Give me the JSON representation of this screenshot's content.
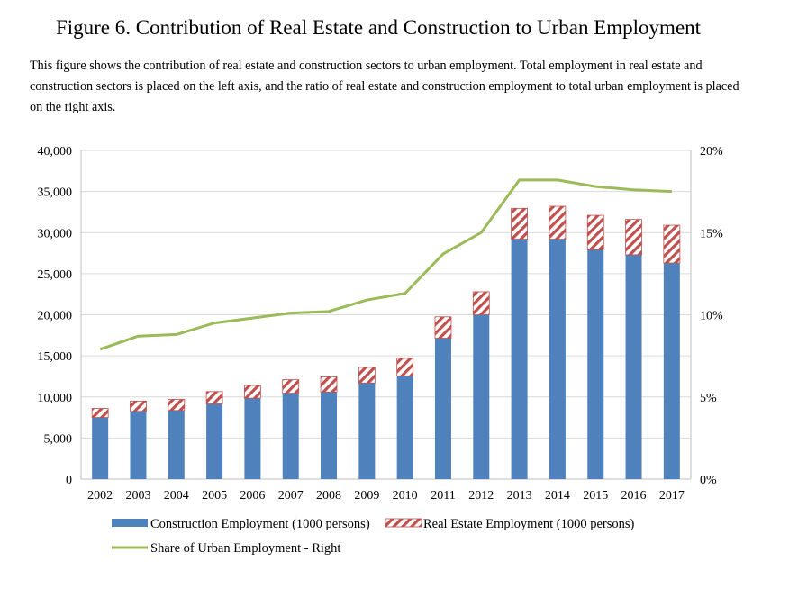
{
  "title": "Figure 6. Contribution of Real Estate and Construction to Urban Employment",
  "description": "This figure shows the contribution of real estate and construction sectors to urban employment. Total employment in real estate and construction sectors is placed on the left axis, and the ratio of real estate and construction employment to total urban employment is placed on the right axis.",
  "colors": {
    "construction": "#4F81BD",
    "real_estate": "#C0504D",
    "share_line": "#9BBB59",
    "grid": "#d9d9d9"
  },
  "chart_data": {
    "type": "bar",
    "stacked": true,
    "categories": [
      "2002",
      "2003",
      "2004",
      "2005",
      "2006",
      "2007",
      "2008",
      "2009",
      "2010",
      "2011",
      "2012",
      "2013",
      "2014",
      "2015",
      "2016",
      "2017"
    ],
    "series": [
      {
        "name": "Construction Employment (1000 persons)",
        "kind": "bar",
        "axis": "left",
        "values": [
          7500,
          8250,
          8350,
          9150,
          9850,
          10450,
          10600,
          11700,
          12550,
          17150,
          20000,
          29200,
          29200,
          27900,
          27300,
          26300
        ]
      },
      {
        "name": "Real Estate Employment (1000 persons)",
        "kind": "bar",
        "axis": "left",
        "pattern": "hatched",
        "values": [
          1100,
          1250,
          1350,
          1500,
          1550,
          1650,
          1850,
          1900,
          2150,
          2600,
          2800,
          3750,
          4000,
          4200,
          4300,
          4600
        ]
      },
      {
        "name": "Share of Urban Employment - Right",
        "kind": "line",
        "axis": "right",
        "values": [
          7.9,
          8.7,
          8.8,
          9.5,
          9.8,
          10.1,
          10.2,
          10.9,
          11.3,
          13.7,
          15.0,
          18.2,
          18.2,
          17.8,
          17.6,
          17.5
        ]
      }
    ],
    "y_left": {
      "ylim": [
        0,
        40000
      ],
      "tick_values": [
        0,
        5000,
        10000,
        15000,
        20000,
        25000,
        30000,
        35000,
        40000
      ],
      "tick_labels": [
        "0",
        "5,000",
        "10,000",
        "15,000",
        "20,000",
        "25,000",
        "30,000",
        "35,000",
        "40,000"
      ]
    },
    "y_right": {
      "ylim": [
        0,
        20
      ],
      "tick_values": [
        0,
        5,
        10,
        15,
        20
      ],
      "tick_labels": [
        "0%",
        "5%",
        "10%",
        "15%",
        "20%"
      ]
    },
    "grid": true,
    "legend_position": "bottom"
  }
}
